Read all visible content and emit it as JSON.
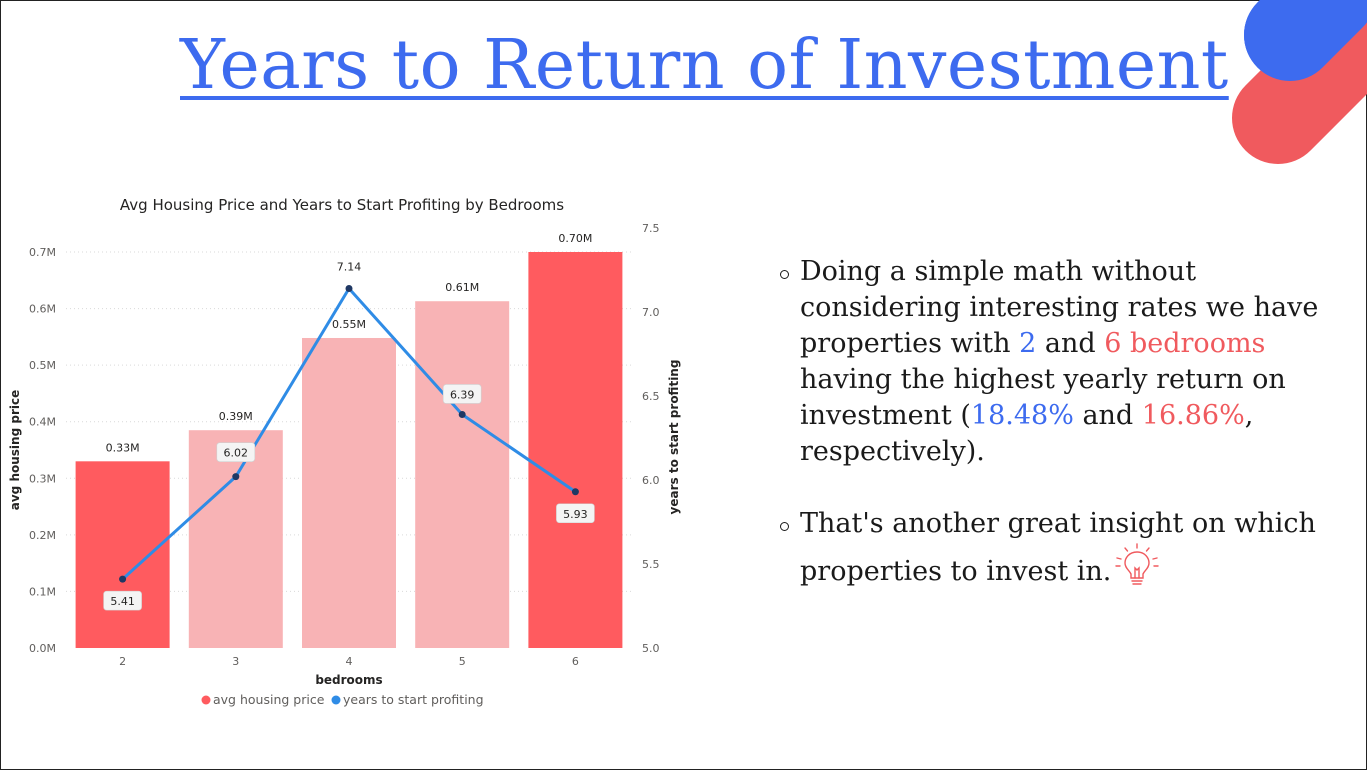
{
  "slide": {
    "title": "Years to Return of Investment"
  },
  "colors": {
    "title_blue": "#3d6bef",
    "accent_red": "#f05a5e",
    "bar_highlight": "#ff5b5f",
    "bar_muted": "#f8b3b5",
    "line_blue": "#2f8ce6"
  },
  "chart_data": {
    "type": "bar",
    "title": "Avg Housing Price and Years to Start Profiting by Bedrooms",
    "xlabel": "bedrooms",
    "ylabel": "avg housing price",
    "y2label": "years to start profiting",
    "categories": [
      "2",
      "3",
      "4",
      "5",
      "6"
    ],
    "ylim": [
      0,
      0.7
    ],
    "y_ticks": [
      "0.0M",
      "0.1M",
      "0.2M",
      "0.3M",
      "0.4M",
      "0.5M",
      "0.6M",
      "0.7M"
    ],
    "y2lim": [
      5.0,
      7.5
    ],
    "y2_ticks": [
      "5.0",
      "5.5",
      "6.0",
      "6.5",
      "7.0",
      "7.5"
    ],
    "grid": true,
    "legend_position": "bottom",
    "series": [
      {
        "name": "avg housing price",
        "type": "bar",
        "axis": "left",
        "values": [
          0.33,
          0.385,
          0.548,
          0.613,
          0.7
        ],
        "labels": [
          "0.33M",
          "0.39M",
          "0.55M",
          "0.61M",
          "0.70M"
        ],
        "highlighted": [
          true,
          false,
          false,
          false,
          true
        ]
      },
      {
        "name": "years to start profiting",
        "type": "line",
        "axis": "right",
        "values": [
          5.41,
          6.02,
          7.14,
          6.39,
          5.93
        ],
        "labels": [
          "5.41",
          "6.02",
          "7.14",
          "6.39",
          "5.93"
        ]
      }
    ]
  },
  "bullets": {
    "b1": {
      "t1": "Doing a simple math without considering interesting rates we have properties with ",
      "t2": "2",
      "t3": " and ",
      "t4": "6 bedrooms",
      "t5": " having the highest yearly return on investment (",
      "t6": "18.48%",
      "t7": " and ",
      "t8": "16.86%",
      "t9": ", respectively)."
    },
    "b2": {
      "text": "That's another great insight on which properties to invest in."
    }
  },
  "icons": {
    "bulb": "lightbulb-icon"
  }
}
